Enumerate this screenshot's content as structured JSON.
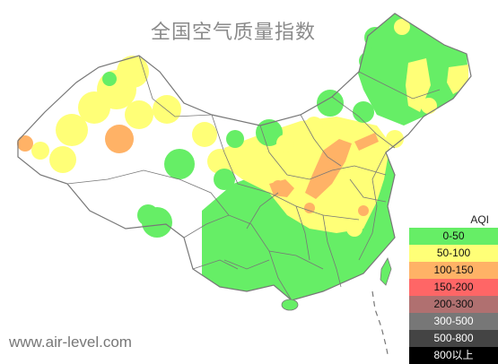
{
  "title": "全国空气质量指数",
  "watermark": "www.air-level.com",
  "legend": {
    "title": "AQI",
    "items": [
      {
        "label": "0-50",
        "color": "#66ee66"
      },
      {
        "label": "50-100",
        "color": "#ffff77"
      },
      {
        "label": "100-150",
        "color": "#ffb266"
      },
      {
        "label": "150-200",
        "color": "#ff6666"
      },
      {
        "label": "200-300",
        "color": "#b07070"
      },
      {
        "label": "300-500",
        "color": "#777777"
      },
      {
        "label": "500-800",
        "color": "#444444"
      },
      {
        "label": "800以上",
        "color": "#000000"
      }
    ]
  },
  "map_colors": {
    "land": "#ffffff",
    "border": "#777777",
    "good": "#66ee66",
    "moderate": "#ffff77",
    "unhealthy_sensitive": "#ffb266"
  }
}
